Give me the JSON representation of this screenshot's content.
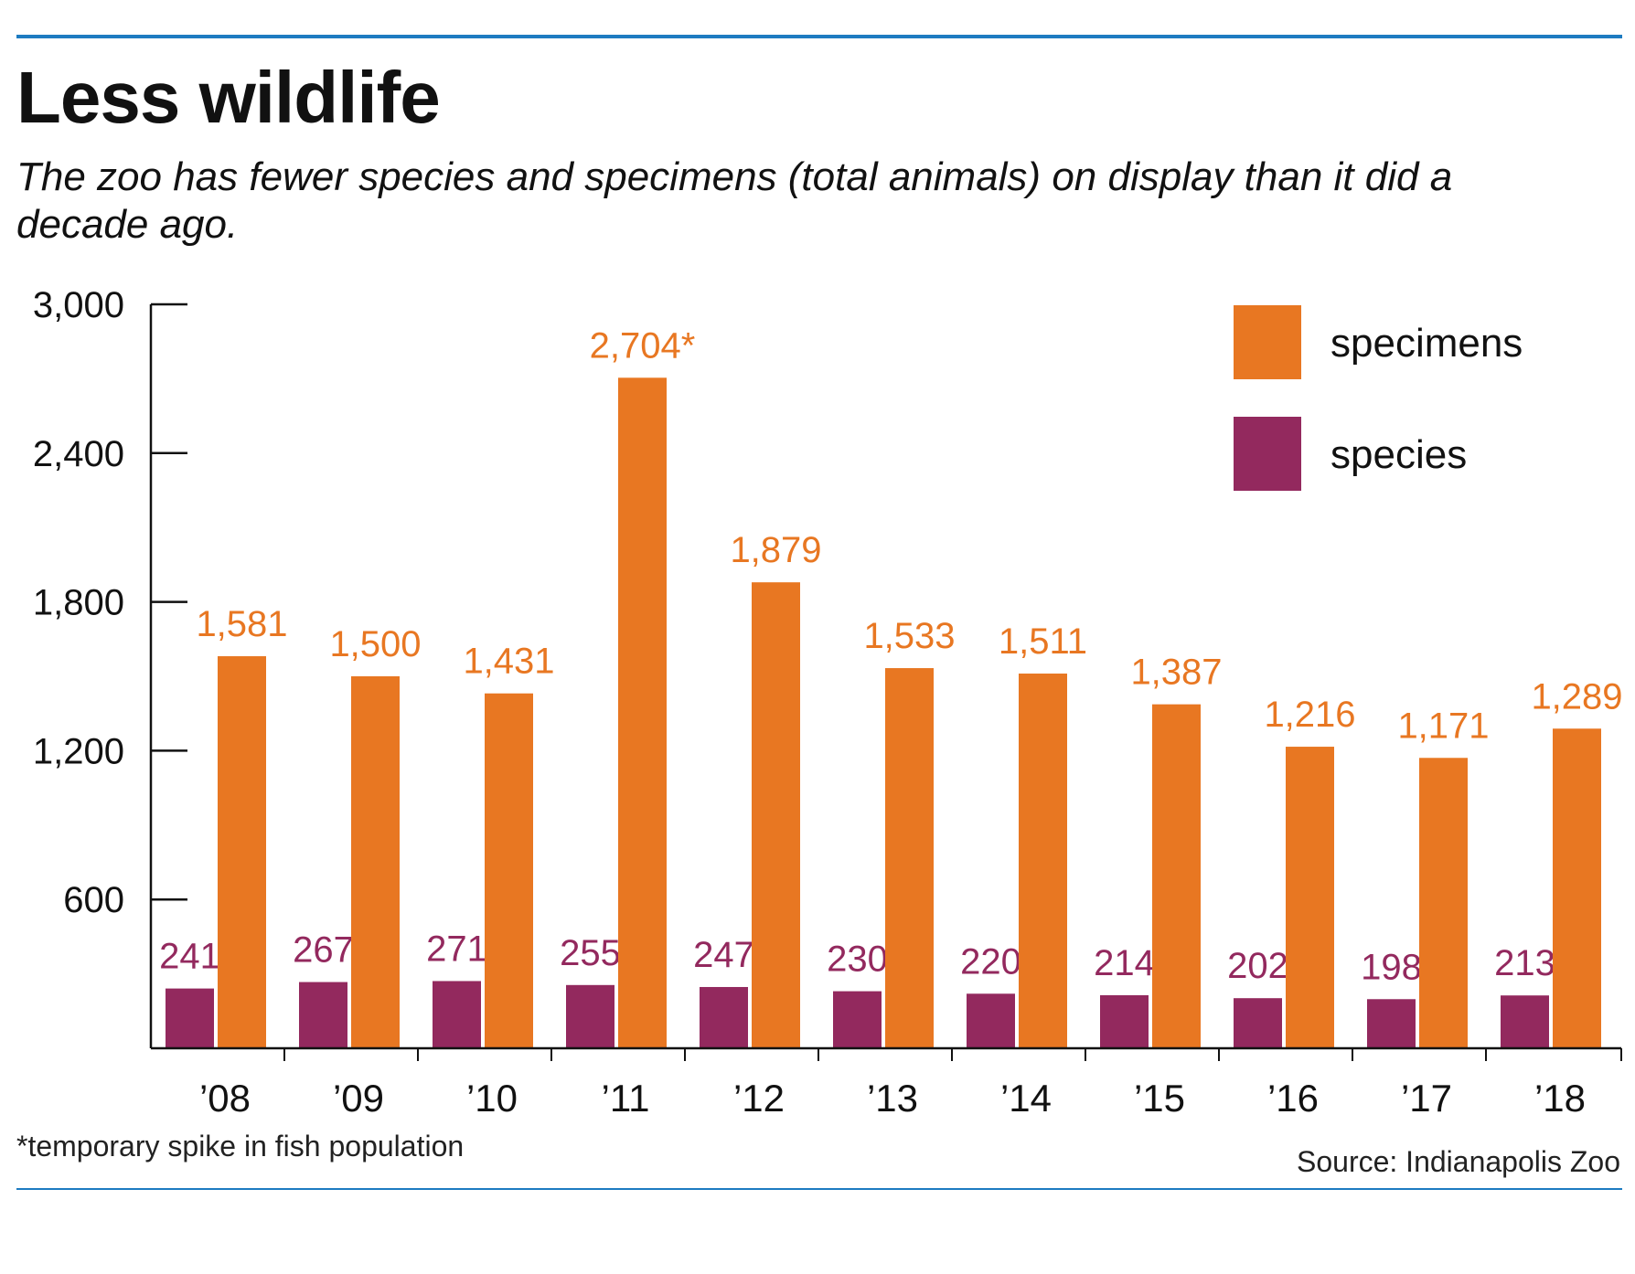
{
  "header": {
    "title": "Less wildlife",
    "subtitle": "The zoo has fewer species and specimens (total animals) on display than it did a decade ago."
  },
  "footer": {
    "footnote": "*temporary spike in fish population",
    "source": "Source: Indianapolis Zoo"
  },
  "colors": {
    "specimens": "#e87722",
    "species": "#93295e",
    "rule": "#1d7bc1"
  },
  "chart_data": {
    "type": "bar",
    "categories": [
      "’08",
      "’09",
      "’10",
      "’11",
      "’12",
      "’13",
      "’14",
      "’15",
      "’16",
      "’17",
      "’18"
    ],
    "series": [
      {
        "name": "species",
        "values": [
          241,
          267,
          271,
          255,
          247,
          230,
          220,
          214,
          202,
          198,
          213
        ],
        "labels": [
          "241",
          "267",
          "271",
          "255",
          "247",
          "230",
          "220",
          "214",
          "202",
          "198",
          "213"
        ]
      },
      {
        "name": "specimens",
        "values": [
          1581,
          1500,
          1431,
          2704,
          1879,
          1533,
          1511,
          1387,
          1216,
          1171,
          1289
        ],
        "labels": [
          "1,581",
          "1,500",
          "1,431",
          "2,704*",
          "1,879",
          "1,533",
          "1,511",
          "1,387",
          "1,216",
          "1,171",
          "1,289"
        ]
      }
    ],
    "ylim": [
      0,
      3000
    ],
    "yticks": [
      600,
      1200,
      1800,
      2400,
      3000
    ],
    "ytick_labels": [
      "600",
      "1,200",
      "1,800",
      "2,400",
      "3,000"
    ],
    "legend": {
      "placement": "top-right",
      "entries": [
        "specimens",
        "species"
      ]
    },
    "grid": false
  }
}
